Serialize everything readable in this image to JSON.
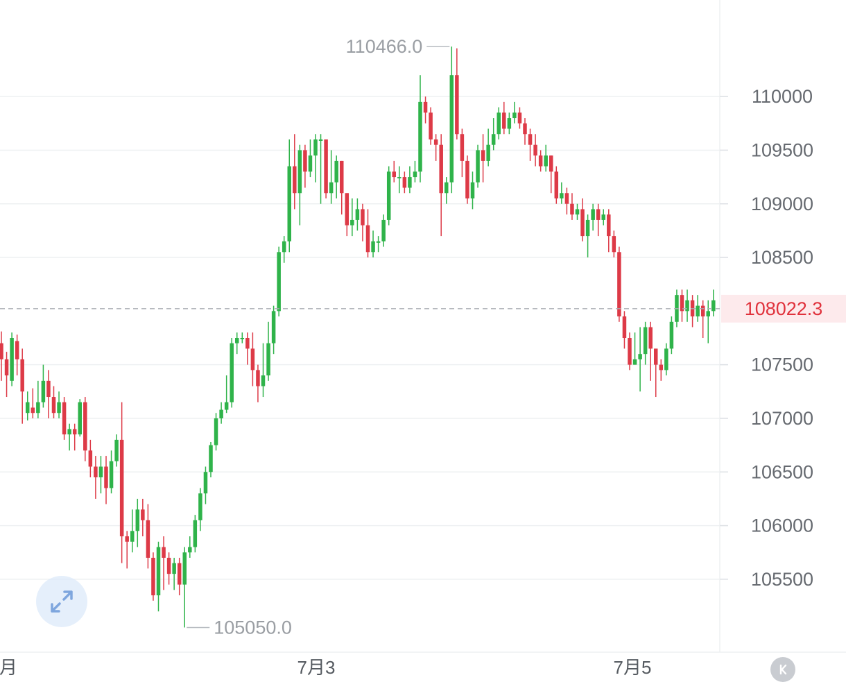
{
  "chart_data": {
    "type": "candlestick",
    "y_ticks": [
      "110000",
      "109500",
      "109000",
      "108500",
      "107500",
      "107000",
      "106500",
      "106000",
      "105500"
    ],
    "y_tick_values": [
      110000,
      109500,
      109000,
      108500,
      107500,
      107000,
      106500,
      106000,
      105500
    ],
    "ylim": [
      104820,
      110900
    ],
    "x_ticks": [
      "月",
      "7月3",
      "7月5"
    ],
    "max_label": "110466.0",
    "min_label": "105050.0",
    "max_value": 110466.0,
    "min_value": 105050.0,
    "current_price": 108022.3,
    "current_price_label": "108022.3",
    "colors": {
      "up": "#2fb34a",
      "down": "#dd3a47",
      "grid": "#eef0f2",
      "current_line": "#a9adb2",
      "current_text": "#e0323c"
    },
    "candles": [
      [
        107700,
        107550,
        107810,
        107350
      ],
      [
        107550,
        107400,
        107620,
        107200
      ],
      [
        107350,
        107750,
        107800,
        107300
      ],
      [
        107720,
        107550,
        107780,
        107400
      ],
      [
        107550,
        107250,
        107650,
        106950
      ],
      [
        107050,
        107150,
        107250,
        106980
      ],
      [
        107100,
        107050,
        107280,
        107000
      ],
      [
        107050,
        107150,
        107350,
        107000
      ],
      [
        107150,
        107350,
        107500,
        107100
      ],
      [
        107350,
        107200,
        107450,
        107000
      ],
      [
        107200,
        107050,
        107300,
        107000
      ],
      [
        107050,
        107150,
        107250,
        107000
      ],
      [
        107150,
        106850,
        107200,
        106800
      ],
      [
        106850,
        106900,
        106950,
        106700
      ],
      [
        106900,
        106850,
        106950,
        106700
      ],
      [
        106850,
        107150,
        107180,
        106830
      ],
      [
        107150,
        106700,
        107200,
        106600
      ],
      [
        106700,
        106550,
        106800,
        106450
      ],
      [
        106550,
        106450,
        106650,
        106250
      ],
      [
        106450,
        106550,
        106650,
        106300
      ],
      [
        106550,
        106350,
        106650,
        106200
      ],
      [
        106350,
        106600,
        106700,
        106300
      ],
      [
        106600,
        106800,
        106850,
        106550
      ],
      [
        106800,
        105900,
        107150,
        105650
      ],
      [
        105900,
        105850,
        105950,
        105600
      ],
      [
        105850,
        105950,
        106150,
        105750
      ],
      [
        105950,
        106150,
        106250,
        105800
      ],
      [
        106150,
        106050,
        106250,
        105900
      ],
      [
        106050,
        105700,
        106200,
        105600
      ],
      [
        105700,
        105350,
        105750,
        105300
      ],
      [
        105350,
        105800,
        105850,
        105200
      ],
      [
        105800,
        105700,
        105900,
        105400
      ],
      [
        105700,
        105550,
        105750,
        105450
      ],
      [
        105550,
        105650,
        105700,
        105400
      ],
      [
        105650,
        105450,
        105700,
        105350
      ],
      [
        105450,
        105750,
        105800,
        105050
      ],
      [
        105750,
        105800,
        105900,
        105700
      ],
      [
        105800,
        106050,
        106100,
        105750
      ],
      [
        106050,
        106300,
        106350,
        105950
      ],
      [
        106300,
        106500,
        106550,
        106200
      ],
      [
        106500,
        106750,
        106780,
        106450
      ],
      [
        106750,
        107000,
        107050,
        106700
      ],
      [
        107000,
        107080,
        107150,
        106950
      ],
      [
        107080,
        107150,
        107400,
        107050
      ],
      [
        107150,
        107700,
        107750,
        107100
      ],
      [
        107700,
        107750,
        107800,
        107600
      ],
      [
        107750,
        107750,
        107800,
        107700
      ],
      [
        107750,
        107650,
        107800,
        107500
      ],
      [
        107650,
        107450,
        107800,
        107300
      ],
      [
        107450,
        107300,
        107500,
        107150
      ],
      [
        107300,
        107400,
        107700,
        107200
      ],
      [
        107400,
        107700,
        107900,
        107350
      ],
      [
        107700,
        108000,
        108050,
        107600
      ],
      [
        108000,
        108550,
        108600,
        107950
      ],
      [
        108550,
        108650,
        108700,
        108450
      ],
      [
        108650,
        109350,
        109600,
        108550
      ],
      [
        109350,
        109100,
        109650,
        108950
      ],
      [
        109100,
        109500,
        109550,
        108800
      ],
      [
        109500,
        109300,
        109550,
        109150
      ],
      [
        109300,
        109450,
        109600,
        109250
      ],
      [
        109450,
        109600,
        109650,
        109200
      ],
      [
        109600,
        109600,
        109650,
        109000
      ],
      [
        109600,
        109100,
        109600,
        109050
      ],
      [
        109100,
        109200,
        109500,
        109000
      ],
      [
        109200,
        109400,
        109450,
        109050
      ],
      [
        109400,
        109100,
        109400,
        108900
      ],
      [
        109100,
        108800,
        109100,
        108700
      ],
      [
        108800,
        108850,
        109050,
        108700
      ],
      [
        108850,
        108950,
        109050,
        108750
      ],
      [
        108950,
        108800,
        109000,
        108650
      ],
      [
        108800,
        108550,
        108950,
        108500
      ],
      [
        108550,
        108650,
        108750,
        108500
      ],
      [
        108650,
        108650,
        108700,
        108550
      ],
      [
        108650,
        108850,
        108900,
        108600
      ],
      [
        108850,
        109300,
        109350,
        108800
      ],
      [
        109300,
        109250,
        109400,
        109200
      ],
      [
        109250,
        109250,
        109350,
        109100
      ],
      [
        109250,
        109150,
        109300,
        109100
      ],
      [
        109150,
        109250,
        109350,
        109100
      ],
      [
        109250,
        109300,
        109400,
        109200
      ],
      [
        109300,
        109950,
        110200,
        109200
      ],
      [
        109950,
        109850,
        110000,
        109750
      ],
      [
        109850,
        109600,
        109900,
        109550
      ],
      [
        109600,
        109550,
        109650,
        109400
      ],
      [
        109550,
        109100,
        109650,
        108700
      ],
      [
        109100,
        109200,
        109250,
        109000
      ],
      [
        109200,
        110200,
        110466,
        109100
      ],
      [
        110200,
        109650,
        110450,
        109600
      ],
      [
        109650,
        109400,
        109700,
        109250
      ],
      [
        109400,
        109050,
        109450,
        109000
      ],
      [
        109050,
        109200,
        109300,
        108950
      ],
      [
        109200,
        109500,
        109550,
        109150
      ],
      [
        109500,
        109400,
        109650,
        109200
      ],
      [
        109400,
        109550,
        109700,
        109350
      ],
      [
        109550,
        109650,
        109800,
        109500
      ],
      [
        109650,
        109850,
        109900,
        109600
      ],
      [
        109850,
        109700,
        109950,
        109650
      ],
      [
        109700,
        109800,
        109850,
        109650
      ],
      [
        109800,
        109850,
        109950,
        109750
      ],
      [
        109850,
        109750,
        109900,
        109700
      ],
      [
        109750,
        109650,
        109800,
        109550
      ],
      [
        109650,
        109550,
        109700,
        109400
      ],
      [
        109550,
        109450,
        109650,
        109350
      ],
      [
        109450,
        109350,
        109500,
        109300
      ],
      [
        109350,
        109450,
        109550,
        109300
      ],
      [
        109450,
        109300,
        109450,
        109100
      ],
      [
        109300,
        109050,
        109350,
        109000
      ],
      [
        109050,
        109100,
        109200,
        109000
      ],
      [
        109100,
        109000,
        109150,
        108900
      ],
      [
        109000,
        108900,
        109100,
        108850
      ],
      [
        108900,
        108950,
        109000,
        108850
      ],
      [
        108950,
        108700,
        109050,
        108650
      ],
      [
        108700,
        108850,
        108900,
        108500
      ],
      [
        108850,
        108950,
        109000,
        108750
      ],
      [
        108950,
        108850,
        109000,
        108700
      ],
      [
        108850,
        108900,
        108950,
        108800
      ],
      [
        108900,
        108700,
        108950,
        108550
      ],
      [
        108700,
        108550,
        108750,
        108500
      ],
      [
        108550,
        107950,
        108600,
        107900
      ],
      [
        107950,
        107750,
        108000,
        107650
      ],
      [
        107750,
        107500,
        107800,
        107450
      ],
      [
        107500,
        107550,
        107800,
        107500
      ],
      [
        107550,
        107600,
        107850,
        107250
      ],
      [
        107600,
        107850,
        107900,
        107500
      ],
      [
        107850,
        107650,
        107900,
        107350
      ],
      [
        107650,
        107500,
        107650,
        107200
      ],
      [
        107500,
        107450,
        107550,
        107350
      ],
      [
        107450,
        107650,
        107700,
        107400
      ],
      [
        107650,
        107900,
        107950,
        107600
      ],
      [
        107900,
        108150,
        108200,
        107850
      ],
      [
        108150,
        108000,
        108200,
        107900
      ],
      [
        108000,
        108100,
        108200,
        107900
      ],
      [
        108100,
        107950,
        108150,
        107850
      ],
      [
        107950,
        108050,
        108150,
        107900
      ],
      [
        108050,
        107950,
        108100,
        107750
      ],
      [
        107950,
        108000,
        108100,
        107700
      ],
      [
        108000,
        108100,
        108200,
        107950
      ],
      [
        108100,
        108022,
        108150,
        107980
      ]
    ]
  }
}
